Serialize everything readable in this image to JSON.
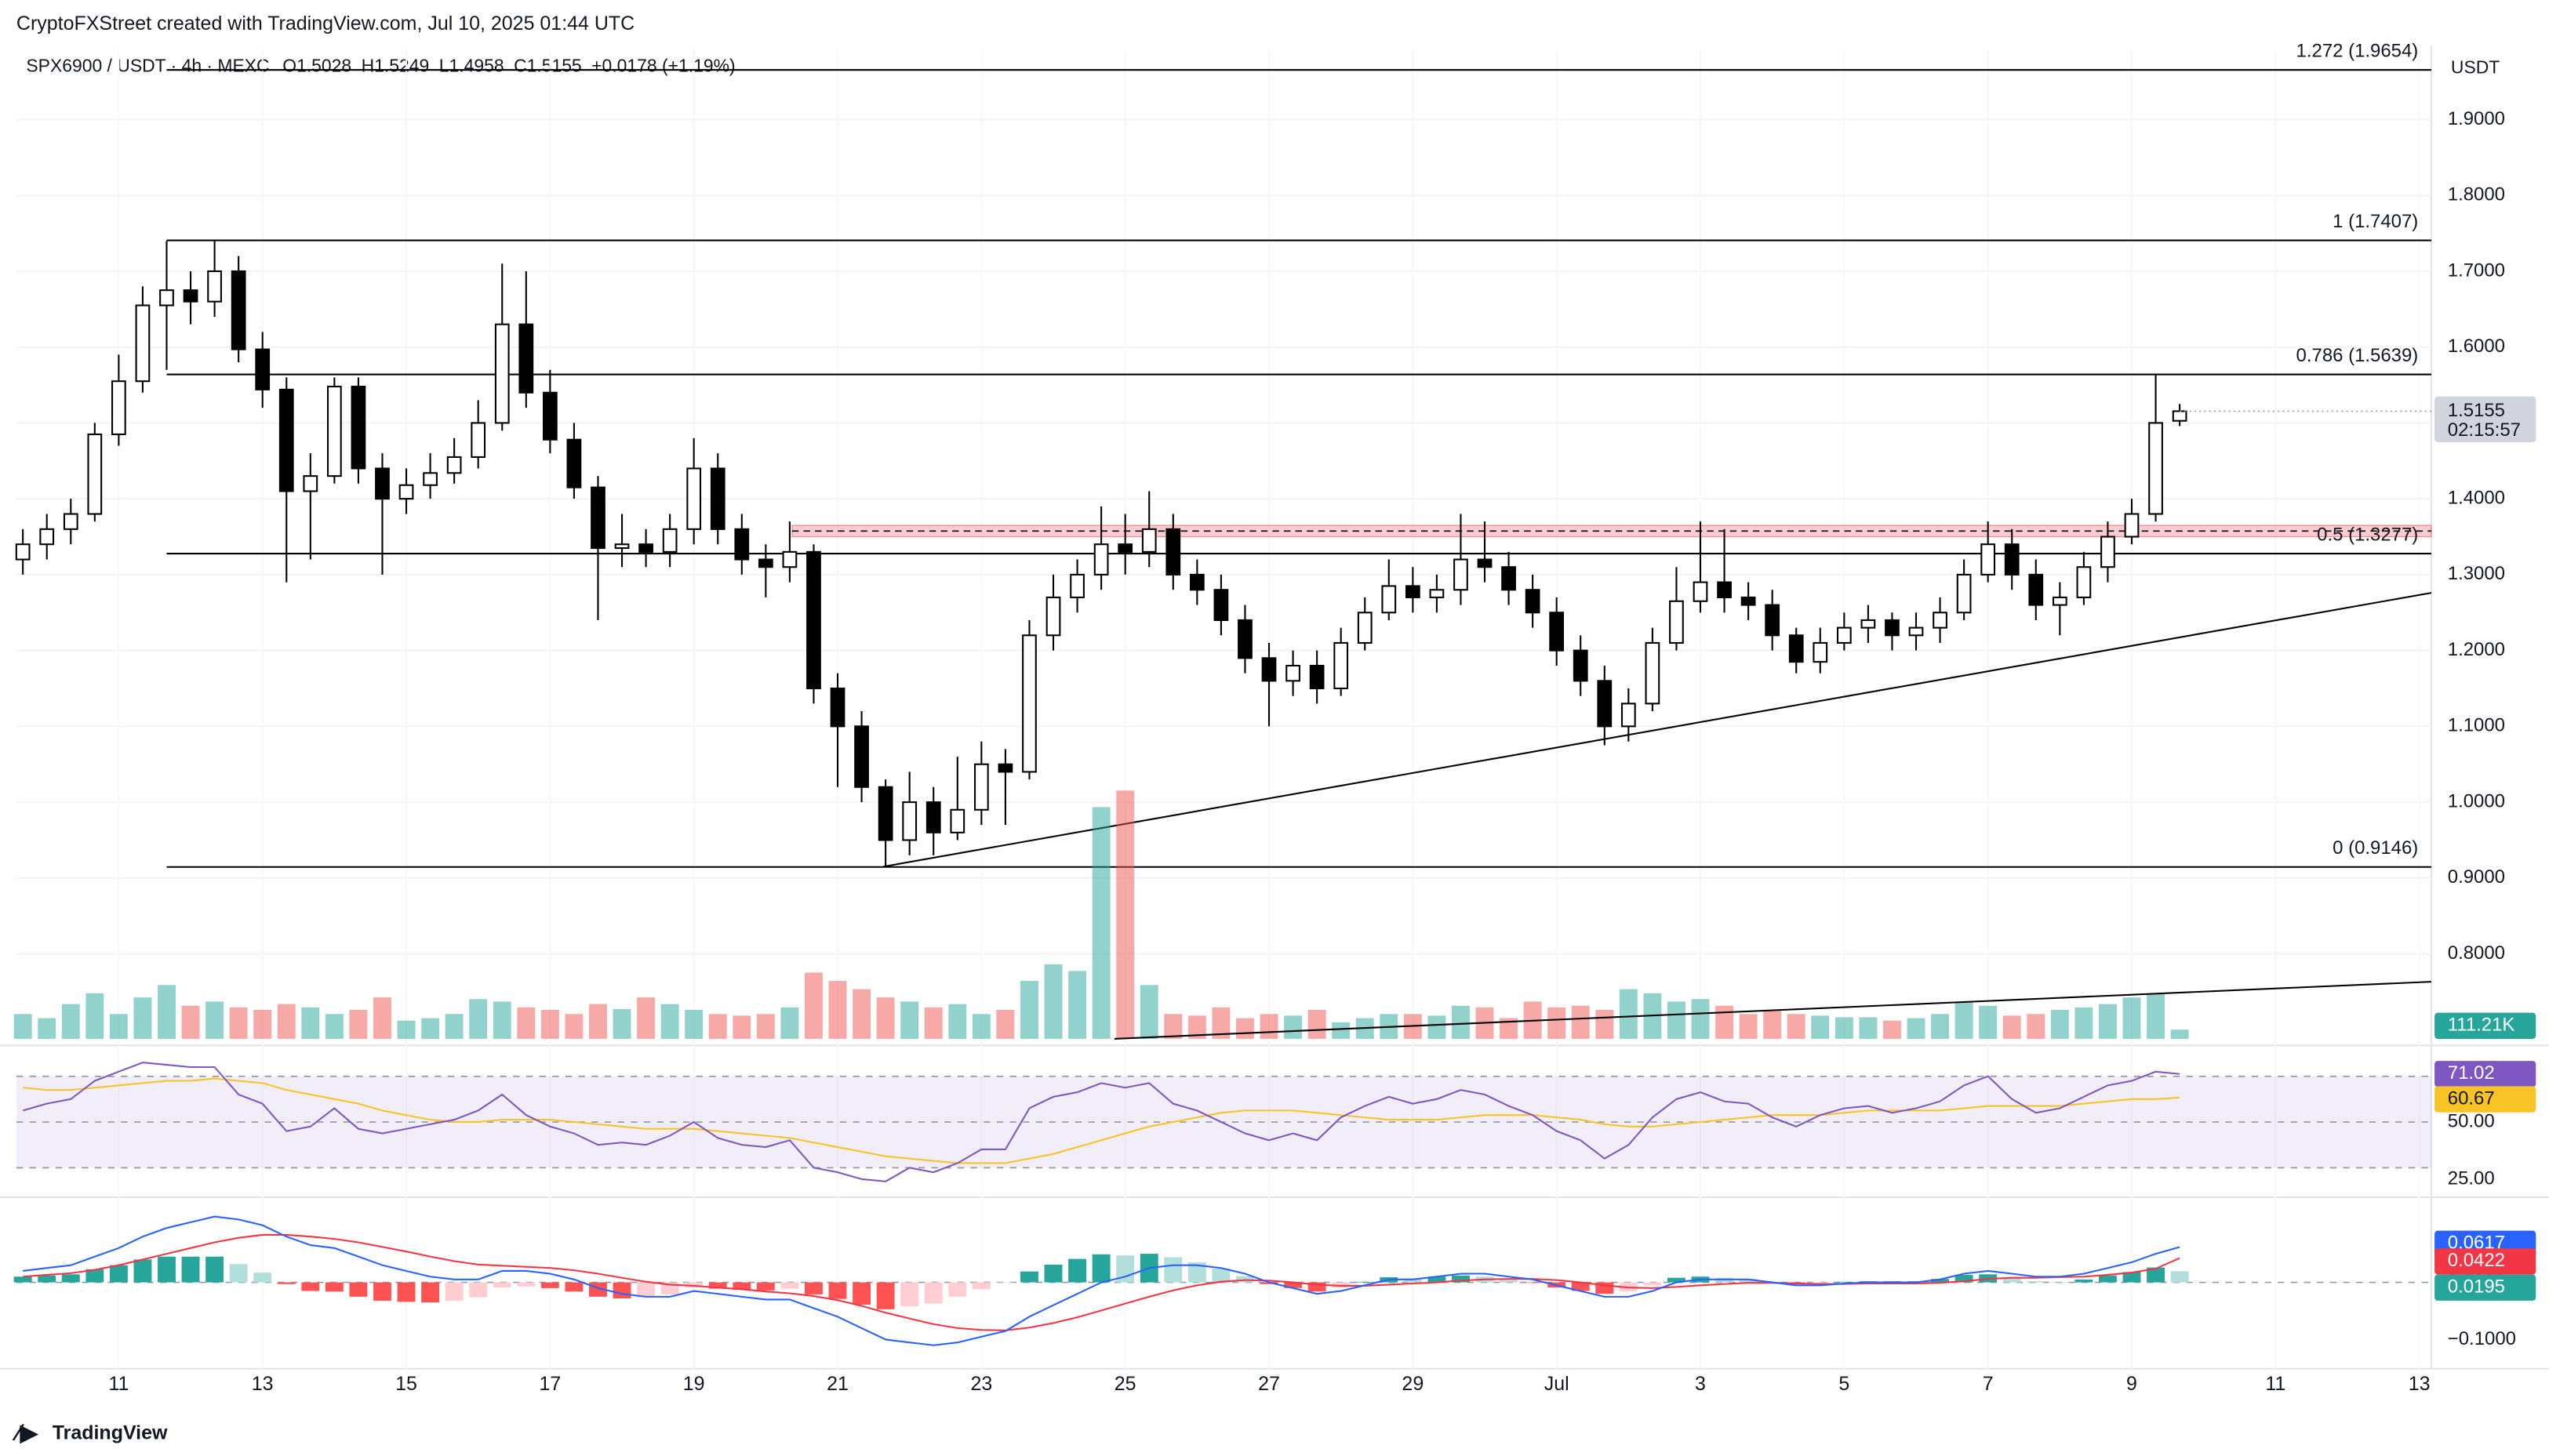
{
  "chart_data": {
    "type": "candlestick",
    "header": "CryptoFXStreet created with TradingView.com, Jul 10, 2025 01:44 UTC",
    "title": "SPX6900 / USDT · 4h · MEXC",
    "legend_values": [
      "O1.5028",
      "H1.5249",
      "L1.4958",
      "C1.5155",
      "+0.0178 (+1.19%)"
    ],
    "currency": "USDT",
    "countdown": "02:15:57",
    "footer": "TradingView",
    "xlim": [
      -0.27,
      100.5
    ],
    "xticks": [
      {
        "value": 4,
        "label": "11"
      },
      {
        "value": 10,
        "label": "13"
      },
      {
        "value": 16,
        "label": "15"
      },
      {
        "value": 22,
        "label": "17"
      },
      {
        "value": 28,
        "label": "19"
      },
      {
        "value": 34,
        "label": "21"
      },
      {
        "value": 40,
        "label": "23"
      },
      {
        "value": 46,
        "label": "25"
      },
      {
        "value": 52,
        "label": "27"
      },
      {
        "value": 58,
        "label": "29"
      },
      {
        "value": 64,
        "label": "Jul"
      },
      {
        "value": 70,
        "label": "3"
      },
      {
        "value": 76,
        "label": "5"
      },
      {
        "value": 82,
        "label": "7"
      },
      {
        "value": 88,
        "label": "9"
      },
      {
        "value": 94,
        "label": "11"
      },
      {
        "value": 100,
        "label": "13"
      }
    ],
    "ylim": [
      0.688,
      1.993
    ],
    "yticks": [
      {
        "value": 1.9,
        "label": "1.9000"
      },
      {
        "value": 1.8,
        "label": "1.8000"
      },
      {
        "value": 1.7,
        "label": "1.7000"
      },
      {
        "value": 1.6,
        "label": "1.6000"
      },
      {
        "value": 1.5,
        "label": "1.5000"
      },
      {
        "value": 1.4,
        "label": "1.4000"
      },
      {
        "value": 1.3,
        "label": "1.3000"
      },
      {
        "value": 1.2,
        "label": "1.2000"
      },
      {
        "value": 1.1,
        "label": "1.1000"
      },
      {
        "value": 1.0,
        "label": "1.0000"
      },
      {
        "value": 0.9,
        "label": "0.9000"
      },
      {
        "value": 0.8,
        "label": "0.8000"
      }
    ],
    "up_color": "#ffffff",
    "down_color": "#000000",
    "open": [
      1.32,
      1.34,
      1.36,
      1.38,
      1.485,
      1.555,
      1.655,
      1.675,
      1.66,
      1.7,
      1.597,
      1.544,
      1.41,
      1.43,
      1.548,
      1.44,
      1.4,
      1.418,
      1.434,
      1.455,
      1.5,
      1.63,
      1.54,
      1.478,
      1.415,
      1.335,
      1.34,
      1.33,
      1.36,
      1.44,
      1.36,
      1.32,
      1.31,
      1.33,
      1.15,
      1.1,
      1.02,
      0.95,
      1.0,
      0.96,
      0.99,
      1.05,
      1.04,
      1.22,
      1.27,
      1.3,
      1.34,
      1.33,
      1.36,
      1.3,
      1.28,
      1.24,
      1.19,
      1.16,
      1.18,
      1.15,
      1.21,
      1.25,
      1.285,
      1.27,
      1.28,
      1.32,
      1.31,
      1.28,
      1.25,
      1.2,
      1.16,
      1.1,
      1.13,
      1.21,
      1.265,
      1.29,
      1.27,
      1.26,
      1.22,
      1.185,
      1.21,
      1.23,
      1.24,
      1.22,
      1.23,
      1.25,
      1.3,
      1.34,
      1.3,
      1.26,
      1.27,
      1.31,
      1.35,
      1.38,
      1.5028
    ],
    "high": [
      1.36,
      1.38,
      1.4,
      1.5,
      1.59,
      1.68,
      1.74,
      1.7,
      1.74,
      1.72,
      1.62,
      1.56,
      1.46,
      1.56,
      1.56,
      1.46,
      1.44,
      1.46,
      1.48,
      1.53,
      1.71,
      1.7,
      1.57,
      1.5,
      1.43,
      1.38,
      1.36,
      1.38,
      1.48,
      1.46,
      1.38,
      1.34,
      1.37,
      1.34,
      1.17,
      1.12,
      1.03,
      1.04,
      1.02,
      1.06,
      1.08,
      1.07,
      1.24,
      1.3,
      1.32,
      1.39,
      1.38,
      1.41,
      1.38,
      1.32,
      1.3,
      1.26,
      1.21,
      1.2,
      1.2,
      1.23,
      1.27,
      1.32,
      1.31,
      1.3,
      1.38,
      1.37,
      1.33,
      1.3,
      1.27,
      1.22,
      1.18,
      1.15,
      1.23,
      1.31,
      1.37,
      1.36,
      1.29,
      1.28,
      1.23,
      1.23,
      1.25,
      1.26,
      1.25,
      1.25,
      1.27,
      1.32,
      1.37,
      1.36,
      1.32,
      1.29,
      1.33,
      1.37,
      1.4,
      1.565,
      1.5249
    ],
    "low": [
      1.3,
      1.32,
      1.34,
      1.37,
      1.47,
      1.54,
      1.57,
      1.63,
      1.64,
      1.58,
      1.52,
      1.29,
      1.32,
      1.42,
      1.42,
      1.3,
      1.38,
      1.4,
      1.42,
      1.44,
      1.49,
      1.52,
      1.46,
      1.4,
      1.24,
      1.31,
      1.31,
      1.31,
      1.34,
      1.34,
      1.3,
      1.27,
      1.29,
      1.13,
      1.02,
      1.0,
      0.915,
      0.93,
      0.93,
      0.95,
      0.97,
      0.97,
      1.03,
      1.2,
      1.25,
      1.28,
      1.3,
      1.31,
      1.28,
      1.26,
      1.22,
      1.17,
      1.1,
      1.14,
      1.13,
      1.14,
      1.2,
      1.24,
      1.25,
      1.25,
      1.26,
      1.29,
      1.26,
      1.23,
      1.18,
      1.14,
      1.075,
      1.08,
      1.12,
      1.2,
      1.25,
      1.25,
      1.24,
      1.2,
      1.17,
      1.17,
      1.2,
      1.21,
      1.2,
      1.2,
      1.21,
      1.24,
      1.29,
      1.28,
      1.24,
      1.22,
      1.26,
      1.29,
      1.34,
      1.37,
      1.4958
    ],
    "close": [
      1.34,
      1.36,
      1.38,
      1.485,
      1.555,
      1.655,
      1.675,
      1.66,
      1.7,
      1.597,
      1.544,
      1.41,
      1.43,
      1.548,
      1.44,
      1.4,
      1.418,
      1.434,
      1.455,
      1.5,
      1.63,
      1.54,
      1.478,
      1.415,
      1.335,
      1.34,
      1.33,
      1.36,
      1.44,
      1.36,
      1.32,
      1.31,
      1.33,
      1.15,
      1.1,
      1.02,
      0.95,
      1.0,
      0.96,
      0.99,
      1.05,
      1.04,
      1.22,
      1.27,
      1.3,
      1.34,
      1.33,
      1.36,
      1.3,
      1.28,
      1.24,
      1.19,
      1.16,
      1.18,
      1.15,
      1.21,
      1.25,
      1.285,
      1.27,
      1.28,
      1.32,
      1.31,
      1.28,
      1.25,
      1.2,
      1.16,
      1.1,
      1.13,
      1.21,
      1.265,
      1.29,
      1.27,
      1.26,
      1.22,
      1.185,
      1.21,
      1.23,
      1.24,
      1.22,
      1.23,
      1.25,
      1.3,
      1.34,
      1.3,
      1.26,
      1.27,
      1.31,
      1.35,
      1.38,
      1.5,
      1.5155
    ],
    "fib_x_start": 6,
    "fib_levels": [
      {
        "value": 1.9654,
        "label": "1.272 (1.9654)"
      },
      {
        "value": 1.7407,
        "label": "1 (1.7407)"
      },
      {
        "value": 1.5639,
        "label": "0.786 (1.5639)"
      },
      {
        "value": 1.3277,
        "label": "0.5 (1.3277)"
      },
      {
        "value": 0.9146,
        "label": "0 (0.9146)"
      }
    ],
    "resistance_zone": {
      "x": [
        32.1,
        100.5
      ],
      "y": [
        1.35,
        1.365
      ],
      "color": "#f23645"
    },
    "trendline": {
      "x": [
        35.9,
        100.5
      ],
      "y": [
        0.915,
        1.276
      ]
    },
    "volume": {
      "ylim": [
        0,
        3000
      ],
      "up_color": "#26a69a",
      "down_color": "#ef5350",
      "values": [
        300,
        250,
        420,
        550,
        300,
        500,
        650,
        400,
        450,
        380,
        350,
        420,
        380,
        300,
        350,
        500,
        220,
        250,
        300,
        480,
        450,
        380,
        350,
        300,
        420,
        360,
        500,
        420,
        350,
        300,
        280,
        300,
        380,
        800,
        700,
        600,
        500,
        450,
        380,
        420,
        300,
        350,
        700,
        900,
        820,
        2800,
        3000,
        650,
        300,
        280,
        380,
        250,
        300,
        280,
        350,
        200,
        250,
        300,
        300,
        280,
        400,
        380,
        250,
        450,
        380,
        400,
        350,
        600,
        550,
        450,
        480,
        400,
        300,
        350,
        300,
        280,
        260,
        260,
        220,
        250,
        300,
        450,
        400,
        280,
        300,
        350,
        380,
        420,
        500,
        550,
        111.21
      ],
      "last_label": "111.21K",
      "trendline": {
        "x": [
          45.55,
          100.5
        ],
        "y": [
          0,
          690
        ]
      }
    },
    "rsi": {
      "ylim": [
        17.1,
        82.1
      ],
      "levels": [
        70,
        50,
        30
      ],
      "yticks": [
        {
          "value": 50,
          "label": "50.00"
        },
        {
          "value": 25,
          "label": "25.00"
        }
      ],
      "color": "#7e57c2",
      "ma_color": "#f7c325",
      "values": [
        55,
        58,
        60,
        68,
        72,
        76,
        75,
        74,
        74,
        62,
        58,
        46,
        48,
        56,
        47,
        45,
        47,
        49,
        51,
        55,
        62,
        53,
        48,
        45,
        40,
        41,
        40,
        44,
        50,
        43,
        40,
        39,
        42,
        30,
        28,
        25,
        24,
        30,
        28,
        32,
        38,
        38,
        56,
        61,
        63,
        67,
        65,
        67,
        58,
        55,
        50,
        45,
        42,
        45,
        42,
        52,
        57,
        61,
        58,
        60,
        64,
        62,
        57,
        53,
        46,
        42,
        34,
        40,
        52,
        60,
        63,
        59,
        58,
        52,
        48,
        53,
        56,
        57,
        54,
        56,
        59,
        66,
        70,
        60,
        54,
        56,
        61,
        66,
        68,
        72,
        71.02
      ],
      "ma": [
        65,
        64,
        64,
        65,
        66,
        67,
        68,
        68,
        69,
        68,
        67,
        64,
        62,
        60,
        58,
        55,
        53,
        51,
        50,
        50,
        51,
        51,
        51,
        50,
        49,
        48,
        47,
        47,
        47,
        46,
        45,
        44,
        43,
        41,
        39,
        37,
        35,
        34,
        33,
        32,
        32,
        32,
        34,
        36,
        39,
        42,
        45,
        48,
        50,
        52,
        54,
        55,
        55,
        55,
        54,
        53,
        52,
        51,
        51,
        51,
        52,
        53,
        53,
        53,
        52,
        51,
        49,
        48,
        48,
        49,
        50,
        51,
        52,
        53,
        53,
        53,
        54,
        55,
        55,
        55,
        55,
        56,
        57,
        57,
        57,
        57,
        58,
        59,
        60,
        60,
        60.67
      ]
    },
    "macd": {
      "ylim": [
        -0.151,
        0.143
      ],
      "yticks": [
        {
          "value": 0,
          "label": "0.0000"
        },
        {
          "value": -0.1,
          "label": "−0.1000"
        }
      ],
      "macd_color": "#2962ff",
      "signal_color": "#f23645",
      "macd": [
        0.02,
        0.025,
        0.03,
        0.045,
        0.06,
        0.08,
        0.095,
        0.105,
        0.115,
        0.11,
        0.1,
        0.08,
        0.065,
        0.06,
        0.045,
        0.03,
        0.02,
        0.01,
        0.005,
        0.005,
        0.02,
        0.02,
        0.015,
        0.005,
        -0.01,
        -0.02,
        -0.025,
        -0.025,
        -0.015,
        -0.02,
        -0.025,
        -0.03,
        -0.03,
        -0.045,
        -0.06,
        -0.08,
        -0.1,
        -0.105,
        -0.11,
        -0.105,
        -0.095,
        -0.085,
        -0.06,
        -0.04,
        -0.02,
        0.0,
        0.01,
        0.025,
        0.03,
        0.03,
        0.025,
        0.015,
        0.0,
        -0.01,
        -0.02,
        -0.015,
        -0.005,
        0.005,
        0.005,
        0.01,
        0.015,
        0.015,
        0.01,
        0.005,
        -0.005,
        -0.015,
        -0.025,
        -0.025,
        -0.015,
        0.0,
        0.005,
        0.005,
        0.005,
        0.0,
        -0.005,
        -0.005,
        -0.002,
        0.0,
        0.0,
        0.0,
        0.005,
        0.015,
        0.02,
        0.015,
        0.01,
        0.01,
        0.015,
        0.025,
        0.035,
        0.05,
        0.0617
      ],
      "signal": [
        0.01,
        0.013,
        0.016,
        0.022,
        0.03,
        0.04,
        0.05,
        0.06,
        0.07,
        0.078,
        0.083,
        0.083,
        0.08,
        0.076,
        0.07,
        0.062,
        0.054,
        0.045,
        0.037,
        0.031,
        0.029,
        0.027,
        0.025,
        0.021,
        0.015,
        0.008,
        0.001,
        -0.004,
        -0.006,
        -0.009,
        -0.012,
        -0.016,
        -0.019,
        -0.024,
        -0.031,
        -0.041,
        -0.053,
        -0.063,
        -0.073,
        -0.08,
        -0.083,
        -0.084,
        -0.079,
        -0.071,
        -0.061,
        -0.049,
        -0.037,
        -0.025,
        -0.014,
        -0.005,
        0.001,
        0.004,
        0.003,
        0.0,
        -0.004,
        -0.006,
        -0.006,
        -0.004,
        -0.002,
        0.0,
        0.003,
        0.005,
        0.006,
        0.006,
        0.004,
        0.0,
        -0.005,
        -0.009,
        -0.01,
        -0.008,
        -0.005,
        -0.003,
        -0.001,
        -0.001,
        -0.002,
        -0.003,
        -0.003,
        -0.002,
        -0.002,
        -0.002,
        -0.001,
        0.002,
        0.006,
        0.008,
        0.008,
        0.009,
        0.01,
        0.013,
        0.017,
        0.024,
        0.0422
      ],
      "histogram": [
        0.01,
        0.012,
        0.014,
        0.023,
        0.03,
        0.04,
        0.045,
        0.045,
        0.045,
        0.032,
        0.017,
        -0.003,
        -0.015,
        -0.016,
        -0.025,
        -0.032,
        -0.034,
        -0.035,
        -0.032,
        -0.026,
        -0.009,
        -0.007,
        -0.01,
        -0.016,
        -0.025,
        -0.028,
        -0.026,
        -0.021,
        -0.009,
        -0.011,
        -0.013,
        -0.014,
        -0.011,
        -0.021,
        -0.029,
        -0.039,
        -0.047,
        -0.042,
        -0.037,
        -0.025,
        -0.012,
        -0.001,
        0.019,
        0.031,
        0.041,
        0.049,
        0.047,
        0.05,
        0.044,
        0.035,
        0.024,
        0.011,
        -0.003,
        -0.01,
        -0.016,
        -0.009,
        0.001,
        0.009,
        0.007,
        0.01,
        0.012,
        0.01,
        0.004,
        -0.001,
        -0.009,
        -0.015,
        -0.02,
        -0.016,
        -0.005,
        0.008,
        0.01,
        0.008,
        0.006,
        0.001,
        -0.003,
        -0.002,
        0.001,
        0.002,
        0.002,
        0.002,
        0.006,
        0.013,
        0.014,
        0.007,
        0.002,
        0.001,
        0.005,
        0.012,
        0.018,
        0.026,
        0.0195
      ]
    }
  }
}
